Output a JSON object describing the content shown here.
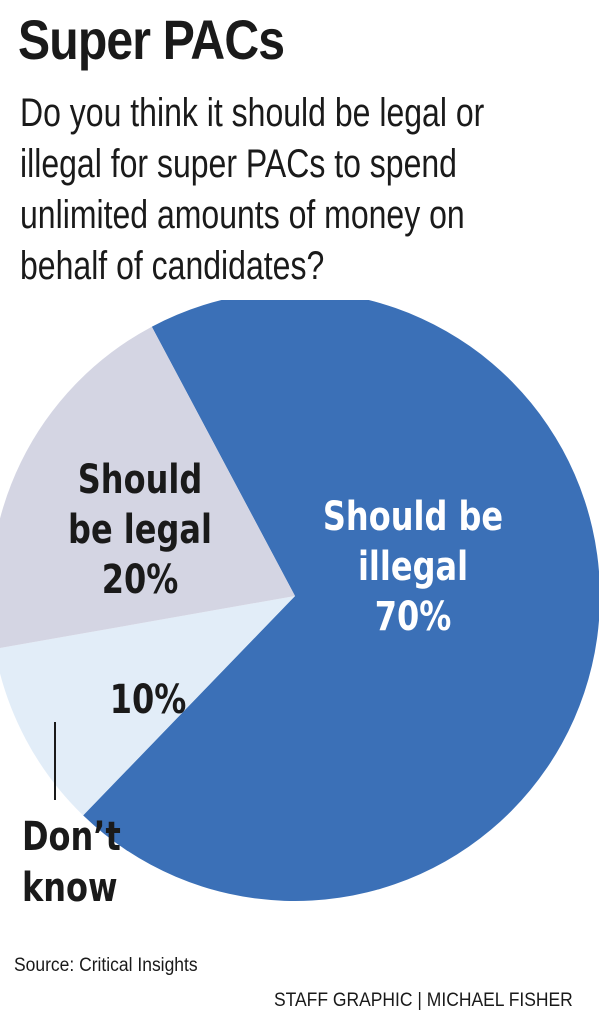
{
  "header": {
    "title": "Super PACs",
    "question": "Do you think it should be legal or illegal for super PACs to spend unlimited amounts of money on behalf of candidates?"
  },
  "chart_data": {
    "type": "pie",
    "title": "Super PACs",
    "slices": [
      {
        "label_lines": [
          "Should be",
          "illegal"
        ],
        "value": 70,
        "value_label": "70%",
        "color": "#3b70b7",
        "text_color": "#ffffff"
      },
      {
        "label_lines": [
          "Don’t",
          "know"
        ],
        "value": 10,
        "value_label": "10%",
        "color": "#e2edf8",
        "text_color": "#1a1a1a"
      },
      {
        "label_lines": [
          "Should",
          "be legal"
        ],
        "value": 20,
        "value_label": "20%",
        "color": "#d4d5e3",
        "text_color": "#1a1a1a"
      }
    ]
  },
  "footer": {
    "source": "Source: Critical Insights",
    "credit": "STAFF GRAPHIC | MICHAEL FISHER"
  }
}
